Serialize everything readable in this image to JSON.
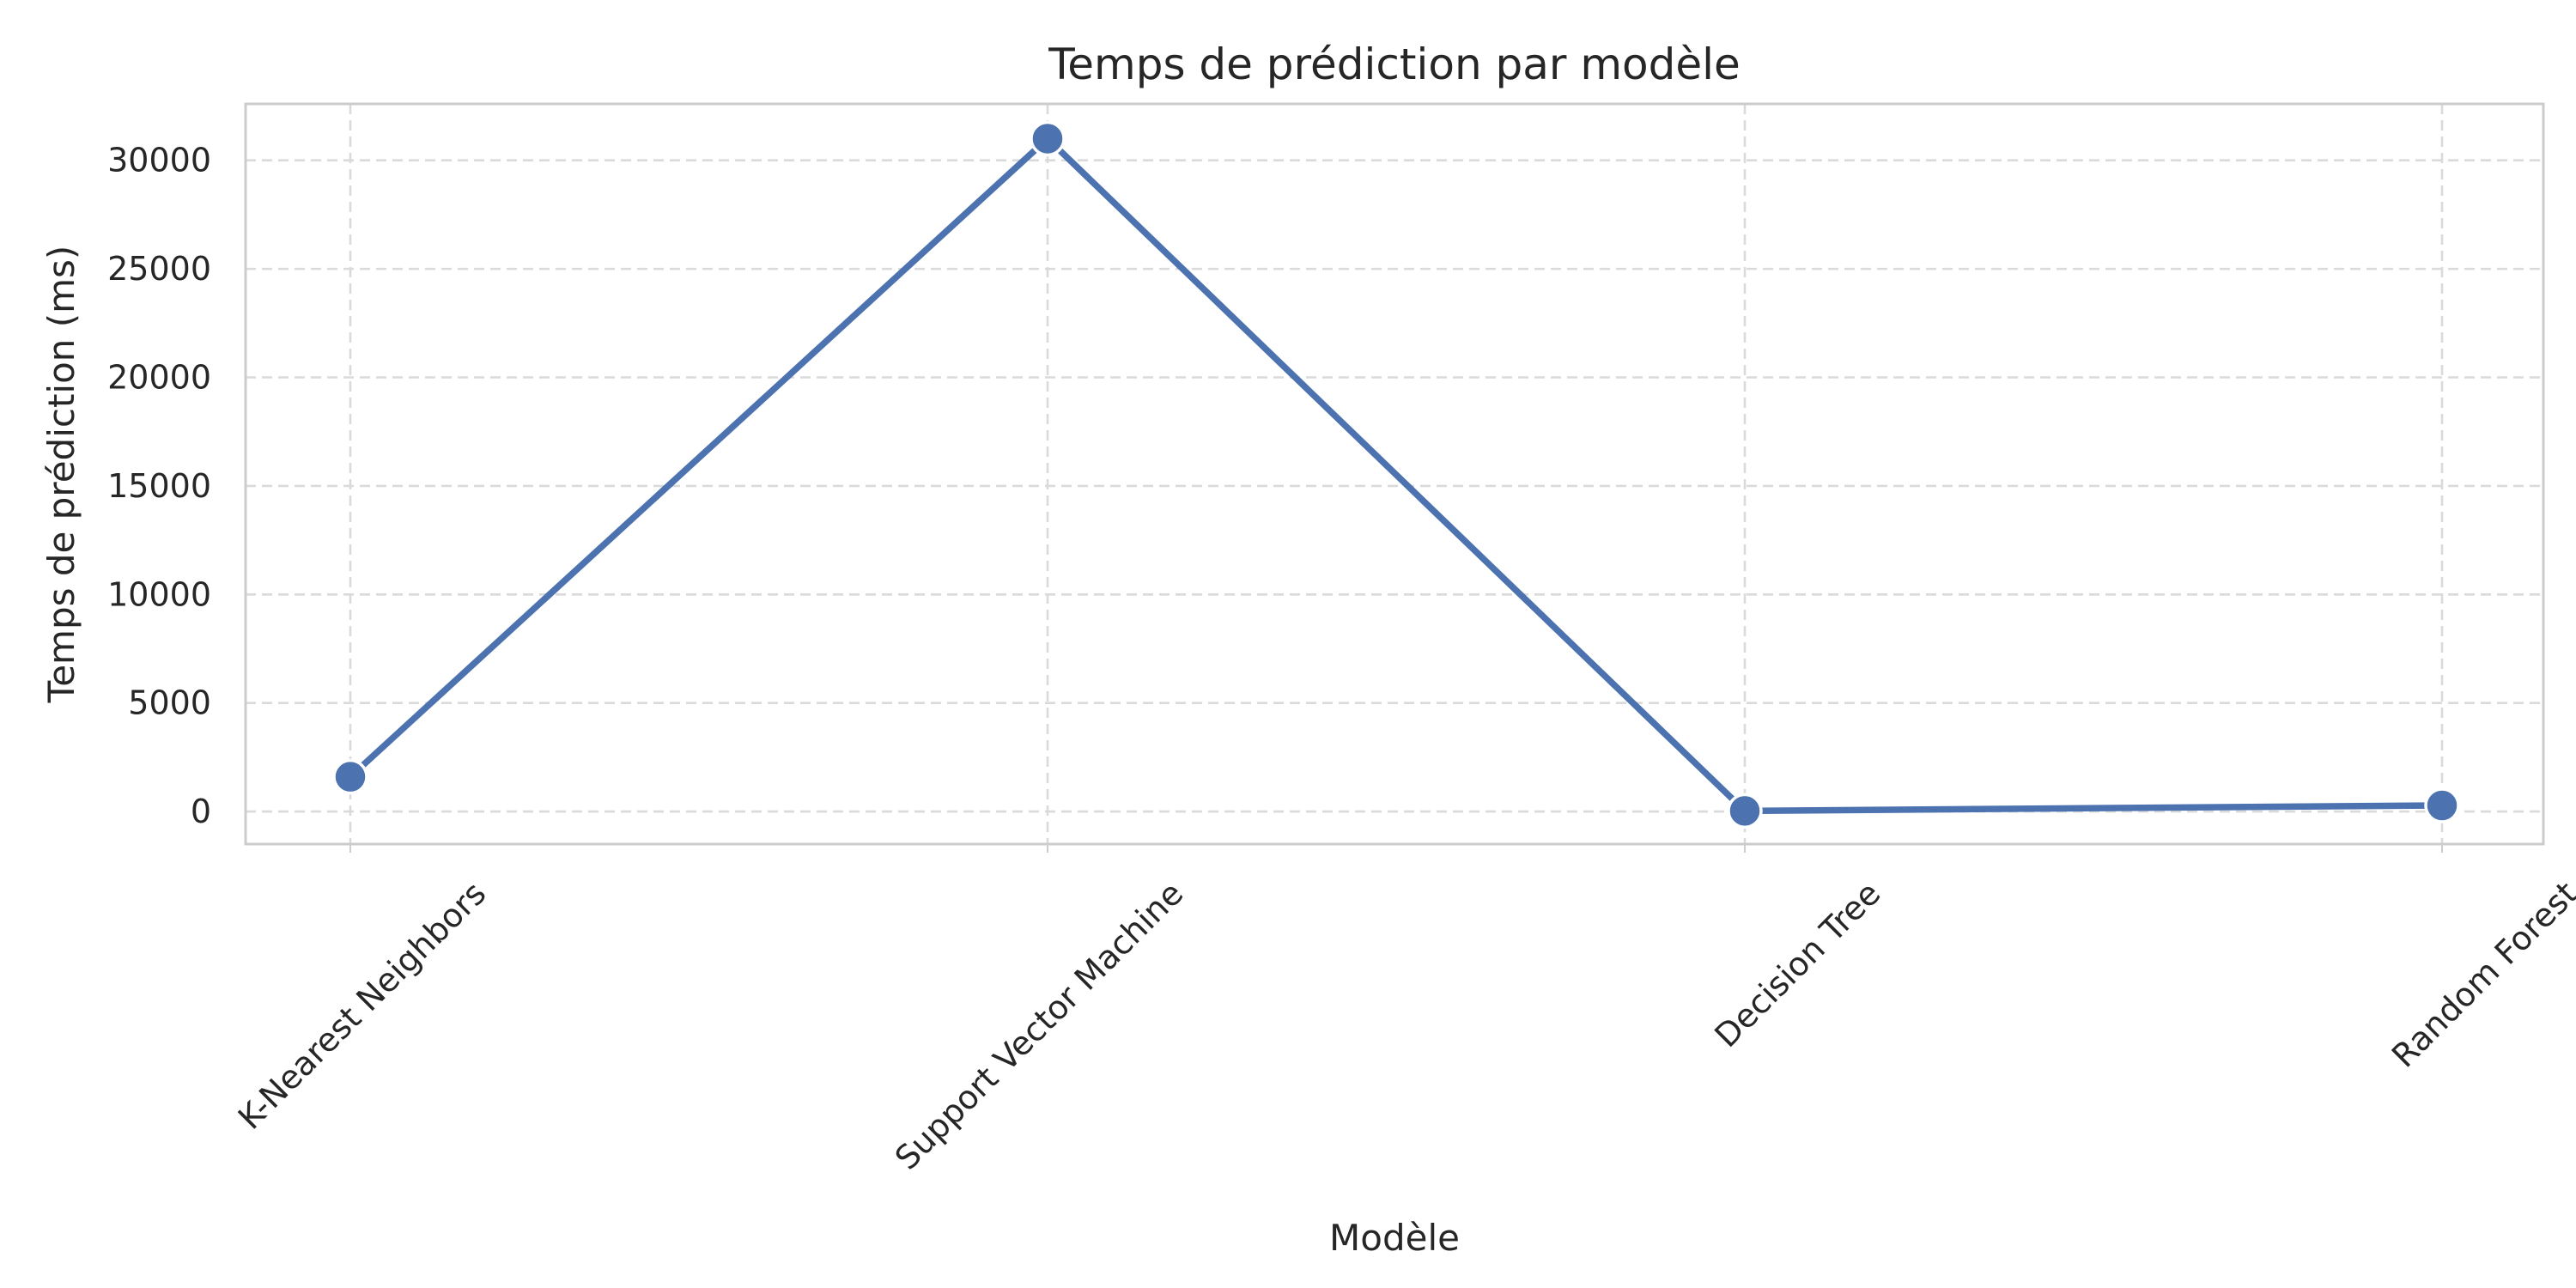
{
  "chart_data": {
    "type": "line",
    "title": "Temps de prédiction par modèle",
    "xlabel": "Modèle",
    "ylabel": "Temps de prédiction (ms)",
    "categories": [
      "K-Nearest Neighbors",
      "Support Vector Machine",
      "Decision Tree",
      "Random Forest"
    ],
    "series": [
      {
        "values": [
          1600,
          31000,
          30,
          280
        ]
      }
    ],
    "ylim": [
      -1500,
      32600
    ],
    "yticks": [
      0,
      5000,
      10000,
      15000,
      20000,
      25000,
      30000
    ],
    "grid": true,
    "line_color": "#4c72b0",
    "marker": "circle"
  }
}
